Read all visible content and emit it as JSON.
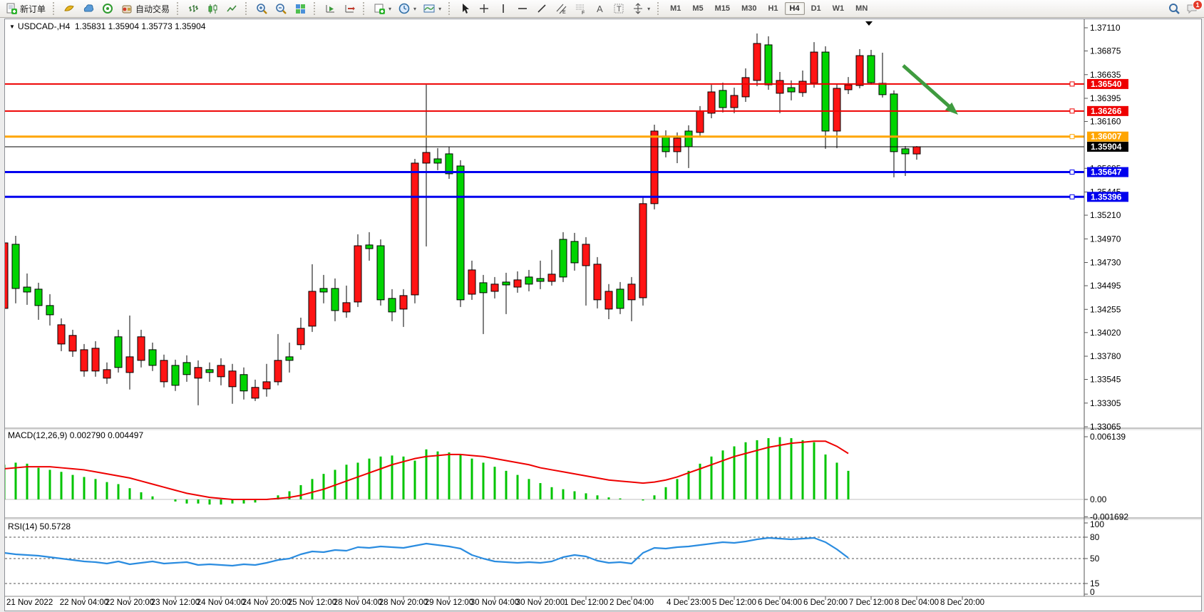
{
  "toolbar": {
    "new_order_label": "新订单",
    "autotrade_label": "自动交易",
    "timeframes": [
      "M1",
      "M5",
      "M15",
      "M30",
      "H1",
      "H4",
      "D1",
      "W1",
      "MN"
    ],
    "active_timeframe": "H4",
    "chat_badge": "1",
    "icon_names": [
      "new-order-icon",
      "charts-icon",
      "marketwatch-icon",
      "signals-icon",
      "autotrading-icon",
      "bar-chart-icon",
      "candlestick-chart-icon",
      "line-chart-icon",
      "zoom-in-icon",
      "zoom-out-icon",
      "tile-windows-icon",
      "chart-forward-icon",
      "chart-shift-icon",
      "new-chart-icon",
      "period-icon",
      "template-icon",
      "cursor-icon",
      "crosshair-icon",
      "vertical-line-icon",
      "horizontal-line-icon",
      "trendline-icon",
      "channel-icon",
      "fibonacci-icon",
      "text-icon",
      "label-icon",
      "arrows-icon",
      "search-icon",
      "chat-icon"
    ]
  },
  "chart": {
    "title": "USDCAD-,H4",
    "ohlc_text": "1.35831 1.35904 1.35773 1.35904",
    "macd_label": "MACD(12,26,9) 0.002790 0.004497",
    "rsi_label": "RSI(14) 50.5728"
  },
  "chart_data": {
    "type": "candlestick",
    "symbol": "USDCAD-",
    "period": "H4",
    "current": {
      "open": 1.35831,
      "high": 1.35904,
      "low": 1.35773,
      "close": 1.35904
    },
    "price_axis": {
      "min": 1.33065,
      "max": 1.3711,
      "ticks": [
        1.3711,
        1.36875,
        1.36635,
        1.36395,
        1.3616,
        1.35685,
        1.35445,
        1.3521,
        1.3497,
        1.3473,
        1.34495,
        1.34255,
        1.3402,
        1.3378,
        1.33545,
        1.33305,
        1.33065
      ]
    },
    "line_levels": [
      {
        "price": 1.3654,
        "color": "#ee0000",
        "width": 2,
        "label_bg": "#ee0000"
      },
      {
        "price": 1.36266,
        "color": "#ee0000",
        "width": 2,
        "label_bg": "#ee0000"
      },
      {
        "price": 1.36007,
        "color": "#ffa500",
        "width": 3,
        "label_bg": "#ffa500"
      },
      {
        "price": 1.35904,
        "color": "#000000",
        "width": 1,
        "label_bg": "#000000"
      },
      {
        "price": 1.35647,
        "color": "#0000ee",
        "width": 3,
        "label_bg": "#0000ee"
      },
      {
        "price": 1.35396,
        "color": "#0000ee",
        "width": 3,
        "label_bg": "#0000ee"
      }
    ],
    "x_labels": [
      {
        "bar": 1,
        "text": "21 Nov 2022"
      },
      {
        "bar": 8,
        "text": "22 Nov 04:00"
      },
      {
        "bar": 12,
        "text": "22 Nov 20:00"
      },
      {
        "bar": 16,
        "text": "23 Nov 12:00"
      },
      {
        "bar": 20,
        "text": "24 Nov 04:00"
      },
      {
        "bar": 24,
        "text": "24 Nov 20:00"
      },
      {
        "bar": 28,
        "text": "25 Nov 12:00"
      },
      {
        "bar": 32,
        "text": "28 Nov 04:00"
      },
      {
        "bar": 36,
        "text": "28 Nov 20:00"
      },
      {
        "bar": 40,
        "text": "29 Nov 12:00"
      },
      {
        "bar": 44,
        "text": "30 Nov 04:00"
      },
      {
        "bar": 48,
        "text": "30 Nov 20:00"
      },
      {
        "bar": 52,
        "text": "1 Dec 12:00"
      },
      {
        "bar": 56,
        "text": "2 Dec 04:00"
      },
      {
        "bar": 61,
        "text": "4 Dec 23:00"
      },
      {
        "bar": 65,
        "text": "5 Dec 12:00"
      },
      {
        "bar": 69,
        "text": "6 Dec 04:00"
      },
      {
        "bar": 73,
        "text": "6 Dec 20:00"
      },
      {
        "bar": 77,
        "text": "7 Dec 12:00"
      },
      {
        "bar": 81,
        "text": "8 Dec 04:00"
      },
      {
        "bar": 85,
        "text": "8 Dec 20:00"
      }
    ],
    "candles": [
      [
        1.34929,
        1.35131,
        1.34164,
        1.34265,
        "r"
      ],
      [
        1.34467,
        1.35001,
        1.34316,
        1.34915,
        "g"
      ],
      [
        1.34431,
        1.34619,
        1.34301,
        1.34481,
        "g"
      ],
      [
        1.34294,
        1.34525,
        1.34149,
        1.3446,
        "g"
      ],
      [
        1.342,
        1.34409,
        1.34092,
        1.34294,
        "g"
      ],
      [
        1.34099,
        1.34164,
        1.33832,
        1.33904,
        "r"
      ],
      [
        1.33991,
        1.34048,
        1.33774,
        1.33832,
        "r"
      ],
      [
        1.33846,
        1.33904,
        1.33572,
        1.3363,
        "r"
      ],
      [
        1.33861,
        1.33933,
        1.33572,
        1.3363,
        "r"
      ],
      [
        1.33644,
        1.33717,
        1.335,
        1.33558,
        "r"
      ],
      [
        1.33666,
        1.34048,
        1.33615,
        1.33977,
        "g"
      ],
      [
        1.33774,
        1.34193,
        1.33442,
        1.33615,
        "r"
      ],
      [
        1.33977,
        1.34048,
        1.33666,
        1.33738,
        "r"
      ],
      [
        1.33687,
        1.33918,
        1.3363,
        1.33846,
        "g"
      ],
      [
        1.33738,
        1.33796,
        1.33464,
        1.33521,
        "r"
      ],
      [
        1.33485,
        1.33745,
        1.33428,
        1.33687,
        "g"
      ],
      [
        1.33594,
        1.33789,
        1.33521,
        1.33716,
        "g"
      ],
      [
        1.33666,
        1.33738,
        1.33283,
        1.33558,
        "r"
      ],
      [
        1.33615,
        1.33717,
        1.33521,
        1.33644,
        "g"
      ],
      [
        1.33687,
        1.33759,
        1.33485,
        1.33572,
        "r"
      ],
      [
        1.3363,
        1.33702,
        1.33298,
        1.33471,
        "r"
      ],
      [
        1.33428,
        1.33666,
        1.33341,
        1.33594,
        "g"
      ],
      [
        1.33464,
        1.33543,
        1.33326,
        1.33355,
        "r"
      ],
      [
        1.33521,
        1.33702,
        1.3337,
        1.33449,
        "r"
      ],
      [
        1.33738,
        1.34005,
        1.33485,
        1.33521,
        "r"
      ],
      [
        1.33738,
        1.33918,
        1.33615,
        1.33774,
        "g"
      ],
      [
        1.34063,
        1.34171,
        1.33846,
        1.33897,
        "r"
      ],
      [
        1.34438,
        1.34713,
        1.34027,
        1.34085,
        "r"
      ],
      [
        1.34431,
        1.34604,
        1.34316,
        1.34467,
        "g"
      ],
      [
        1.34243,
        1.34568,
        1.34135,
        1.34467,
        "g"
      ],
      [
        1.34323,
        1.34496,
        1.34171,
        1.34229,
        "r"
      ],
      [
        1.349,
        1.35016,
        1.34279,
        1.3433,
        "r"
      ],
      [
        1.34871,
        1.35038,
        1.34749,
        1.34908,
        "g"
      ],
      [
        1.34352,
        1.34965,
        1.34294,
        1.349,
        "g"
      ],
      [
        1.34229,
        1.3446,
        1.34135,
        1.34366,
        "g"
      ],
      [
        1.34395,
        1.3446,
        1.34077,
        1.34258,
        "r"
      ],
      [
        1.35738,
        1.35781,
        1.34316,
        1.34402,
        "r"
      ],
      [
        1.35846,
        1.36532,
        1.34893,
        1.35738,
        "r"
      ],
      [
        1.35738,
        1.3589,
        1.35666,
        1.35781,
        "g"
      ],
      [
        1.3563,
        1.35904,
        1.35579,
        1.35832,
        "g"
      ],
      [
        1.34352,
        1.35767,
        1.34279,
        1.35709,
        "g"
      ],
      [
        1.34655,
        1.34749,
        1.34352,
        1.34409,
        "r"
      ],
      [
        1.34424,
        1.34604,
        1.34005,
        1.34525,
        "g"
      ],
      [
        1.34511,
        1.34583,
        1.34366,
        1.34438,
        "r"
      ],
      [
        1.34503,
        1.34626,
        1.34207,
        1.34532,
        "g"
      ],
      [
        1.34554,
        1.34641,
        1.34424,
        1.34481,
        "r"
      ],
      [
        1.34511,
        1.34655,
        1.34438,
        1.34583,
        "g"
      ],
      [
        1.34539,
        1.34749,
        1.3446,
        1.34568,
        "g"
      ],
      [
        1.34612,
        1.34858,
        1.34496,
        1.34539,
        "r"
      ],
      [
        1.34583,
        1.35038,
        1.34532,
        1.34965,
        "g"
      ],
      [
        1.34727,
        1.35031,
        1.34648,
        1.34944,
        "g"
      ],
      [
        1.34915,
        1.34987,
        1.34294,
        1.34698,
        "r"
      ],
      [
        1.34713,
        1.34785,
        1.34265,
        1.34352,
        "r"
      ],
      [
        1.34438,
        1.34511,
        1.34156,
        1.34258,
        "r"
      ],
      [
        1.34265,
        1.34532,
        1.34207,
        1.3446,
        "g"
      ],
      [
        1.34511,
        1.34583,
        1.34135,
        1.34352,
        "r"
      ],
      [
        1.35327,
        1.35392,
        1.34294,
        1.34373,
        "r"
      ],
      [
        1.36063,
        1.36128,
        1.35269,
        1.35327,
        "r"
      ],
      [
        1.35854,
        1.36071,
        1.35796,
        1.36013,
        "g"
      ],
      [
        1.35991,
        1.36049,
        1.35738,
        1.35854,
        "r"
      ],
      [
        1.35904,
        1.36121,
        1.35688,
        1.36063,
        "g"
      ],
      [
        1.36265,
        1.36316,
        1.35998,
        1.36049,
        "r"
      ],
      [
        1.3646,
        1.36532,
        1.36193,
        1.36244,
        "r"
      ],
      [
        1.36301,
        1.36554,
        1.36251,
        1.36475,
        "g"
      ],
      [
        1.36424,
        1.36503,
        1.36244,
        1.36301,
        "r"
      ],
      [
        1.36605,
        1.36698,
        1.36359,
        1.3641,
        "r"
      ],
      [
        1.36951,
        1.37052,
        1.36518,
        1.36576,
        "r"
      ],
      [
        1.36532,
        1.37023,
        1.36482,
        1.36937,
        "g"
      ],
      [
        1.36576,
        1.36662,
        1.36244,
        1.36446,
        "r"
      ],
      [
        1.3646,
        1.36576,
        1.36374,
        1.36503,
        "g"
      ],
      [
        1.36568,
        1.36677,
        1.3641,
        1.36453,
        "r"
      ],
      [
        1.36864,
        1.36965,
        1.36503,
        1.36547,
        "r"
      ],
      [
        1.36063,
        1.36922,
        1.35883,
        1.36864,
        "g"
      ],
      [
        1.36496,
        1.36547,
        1.3589,
        1.36063,
        "r"
      ],
      [
        1.36532,
        1.36611,
        1.36438,
        1.36482,
        "r"
      ],
      [
        1.36828,
        1.36893,
        1.36496,
        1.36525,
        "r"
      ],
      [
        1.36554,
        1.36886,
        1.36532,
        1.36828,
        "g"
      ],
      [
        1.36432,
        1.36857,
        1.36403,
        1.36547,
        "g"
      ],
      [
        1.35854,
        1.36475,
        1.35594,
        1.36439,
        "g"
      ],
      [
        1.35832,
        1.35911,
        1.35608,
        1.35883,
        "g"
      ],
      [
        1.35831,
        1.35911,
        1.35773,
        1.35904,
        "r"
      ]
    ],
    "macd": {
      "params": "12,26,9",
      "main_value": 0.00279,
      "signal_value": 0.004497,
      "axis_ticks": [
        0.006139,
        0.0,
        -0.001692
      ],
      "histogram": [
        0.0034,
        0.0036,
        0.0035,
        0.0031,
        0.0029,
        0.0027,
        0.0024,
        0.0022,
        0.002,
        0.0017,
        0.0015,
        0.0011,
        0.0007,
        0.0003,
        0.0,
        -0.0002,
        -0.0004,
        -0.0004,
        -0.0005,
        -0.0005,
        -0.0004,
        -0.0004,
        -0.0003,
        0.0,
        0.0004,
        0.0008,
        0.0014,
        0.002,
        0.0025,
        0.0029,
        0.0034,
        0.0036,
        0.004,
        0.0042,
        0.0043,
        0.0042,
        0.0038,
        0.0049,
        0.0047,
        0.0046,
        0.0044,
        0.004,
        0.0036,
        0.0032,
        0.0028,
        0.0024,
        0.002,
        0.0016,
        0.0012,
        0.001,
        0.0008,
        0.0006,
        0.0004,
        0.0002,
        0.0001,
        0.0,
        -0.0001,
        0.0004,
        0.0012,
        0.002,
        0.0028,
        0.0035,
        0.0042,
        0.0048,
        0.0052,
        0.0056,
        0.0058,
        0.006,
        0.0061,
        0.006,
        0.0058,
        0.0056,
        0.0044,
        0.0036,
        0.0028
      ],
      "signal_line": [
        0.003,
        0.0031,
        0.0032,
        0.0032,
        0.0032,
        0.0031,
        0.003,
        0.0029,
        0.0027,
        0.0025,
        0.0023,
        0.0021,
        0.0018,
        0.0015,
        0.0012,
        0.0009,
        0.0006,
        0.0004,
        0.0002,
        0.0001,
        0.0,
        0.0,
        0.0,
        0.0,
        0.0001,
        0.0002,
        0.0004,
        0.0007,
        0.001,
        0.0014,
        0.0018,
        0.0022,
        0.0026,
        0.003,
        0.0034,
        0.0037,
        0.004,
        0.0042,
        0.0043,
        0.0044,
        0.0044,
        0.0043,
        0.0042,
        0.004,
        0.0038,
        0.0036,
        0.0034,
        0.0031,
        0.0029,
        0.0027,
        0.0025,
        0.0023,
        0.0021,
        0.0019,
        0.0018,
        0.0017,
        0.0016,
        0.0017,
        0.0019,
        0.0022,
        0.0026,
        0.003,
        0.0034,
        0.0038,
        0.0042,
        0.0045,
        0.0048,
        0.0051,
        0.0053,
        0.0055,
        0.0056,
        0.0057,
        0.0057,
        0.0052,
        0.0045
      ]
    },
    "rsi": {
      "period": 14,
      "value": 50.5728,
      "levels": [
        100,
        80,
        50,
        15,
        0
      ],
      "series": [
        58,
        56,
        55,
        54,
        52,
        50,
        48,
        46,
        45,
        43,
        46,
        42,
        44,
        46,
        43,
        44,
        45,
        41,
        42,
        41,
        40,
        42,
        41,
        44,
        48,
        50,
        56,
        60,
        59,
        62,
        61,
        66,
        65,
        67,
        66,
        65,
        68,
        71,
        69,
        67,
        64,
        55,
        50,
        46,
        45,
        44,
        45,
        44,
        46,
        52,
        55,
        53,
        47,
        44,
        45,
        43,
        58,
        65,
        64,
        66,
        67,
        69,
        71,
        73,
        72,
        74,
        77,
        79,
        78,
        77,
        78,
        79,
        73,
        63,
        51
      ]
    },
    "annotations": [
      {
        "type": "arrow",
        "color": "#3f9b3f",
        "from": [
          1260,
          65
        ],
        "to": [
          1337,
          134
        ]
      },
      {
        "type": "shift-marker",
        "color": "#000000",
        "x": 1212,
        "y": 3
      }
    ],
    "colors": {
      "bull": "#00d400",
      "bear": "#ff1414",
      "wick": "#000000",
      "macd_hist": "#00c400",
      "macd_signal": "#ee0000",
      "rsi_line": "#2a8ce0",
      "background": "#ffffff"
    }
  }
}
